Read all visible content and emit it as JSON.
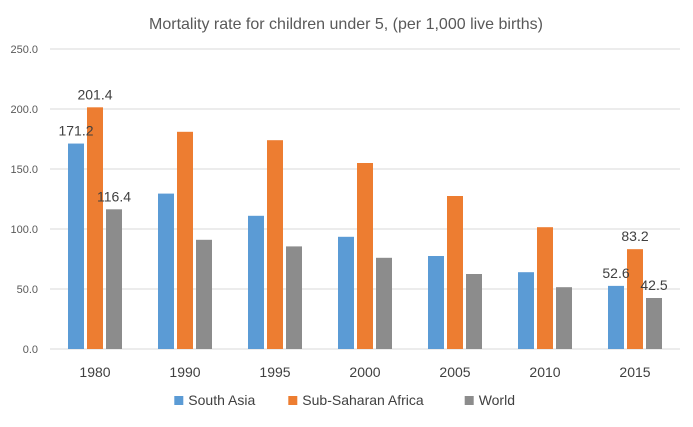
{
  "chart_data": {
    "type": "bar",
    "title": "Mortality rate for children under 5, (per 1,000 live births)",
    "categories": [
      "1980",
      "1990",
      "1995",
      "2000",
      "2005",
      "2010",
      "2015"
    ],
    "series": [
      {
        "name": "South Asia",
        "color": "#5b9bd5",
        "values": [
          171.2,
          129.5,
          111.0,
          93.5,
          77.5,
          64.0,
          52.6
        ]
      },
      {
        "name": "Sub-Saharan Africa",
        "color": "#ed7d31",
        "values": [
          201.4,
          181.0,
          174.0,
          155.0,
          127.5,
          101.5,
          83.2
        ]
      },
      {
        "name": "World",
        "color": "#8c8c8c",
        "values": [
          116.4,
          91.0,
          85.5,
          76.0,
          62.5,
          51.5,
          42.5
        ]
      }
    ],
    "data_labels": [
      {
        "series": 0,
        "index": 0,
        "text": "171.2"
      },
      {
        "series": 1,
        "index": 0,
        "text": "201.4"
      },
      {
        "series": 2,
        "index": 0,
        "text": "116.4"
      },
      {
        "series": 0,
        "index": 6,
        "text": "52.6"
      },
      {
        "series": 1,
        "index": 6,
        "text": "83.2"
      },
      {
        "series": 2,
        "index": 6,
        "text": "42.5"
      }
    ],
    "yticks": [
      "0.0",
      "50.0",
      "100.0",
      "150.0",
      "200.0",
      "250.0"
    ],
    "ylim": [
      0,
      250
    ],
    "grid": true,
    "legend_position": "bottom"
  }
}
